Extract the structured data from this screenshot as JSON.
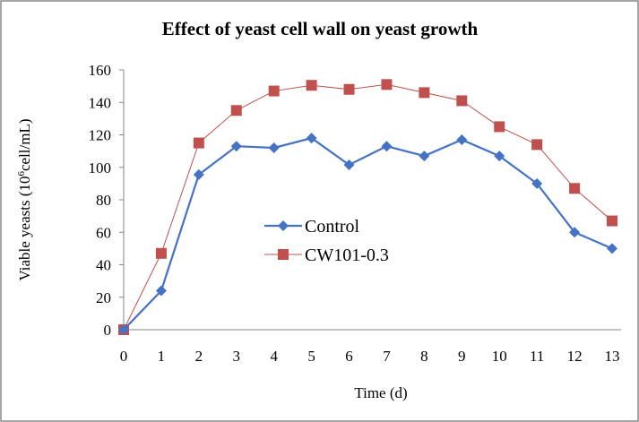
{
  "chart_data": {
    "type": "line",
    "title": "Effect of yeast cell wall on yeast growth",
    "xlabel": "Time (d)",
    "ylabel": {
      "prefix": "Viable yeasts (10",
      "sup": "6",
      "suffix": "cell/mL)"
    },
    "x": [
      0,
      1,
      2,
      3,
      4,
      5,
      6,
      7,
      8,
      9,
      10,
      11,
      12,
      13
    ],
    "ylim": [
      0,
      160
    ],
    "yticks": [
      0,
      20,
      40,
      60,
      80,
      100,
      120,
      140,
      160
    ],
    "grid": false,
    "legend_position": "center-left",
    "series": [
      {
        "name": "Control",
        "color": "#4472C4",
        "marker": "diamond",
        "values": [
          0,
          24,
          95.5,
          113,
          112,
          118,
          101.5,
          113,
          107,
          117,
          107,
          90,
          60,
          50
        ]
      },
      {
        "name": "CW101-0.3",
        "color": "#C0504D",
        "marker": "square",
        "values": [
          0,
          47,
          115,
          135,
          147,
          150.5,
          148,
          151,
          146,
          141,
          125,
          114,
          87,
          67
        ]
      }
    ]
  }
}
